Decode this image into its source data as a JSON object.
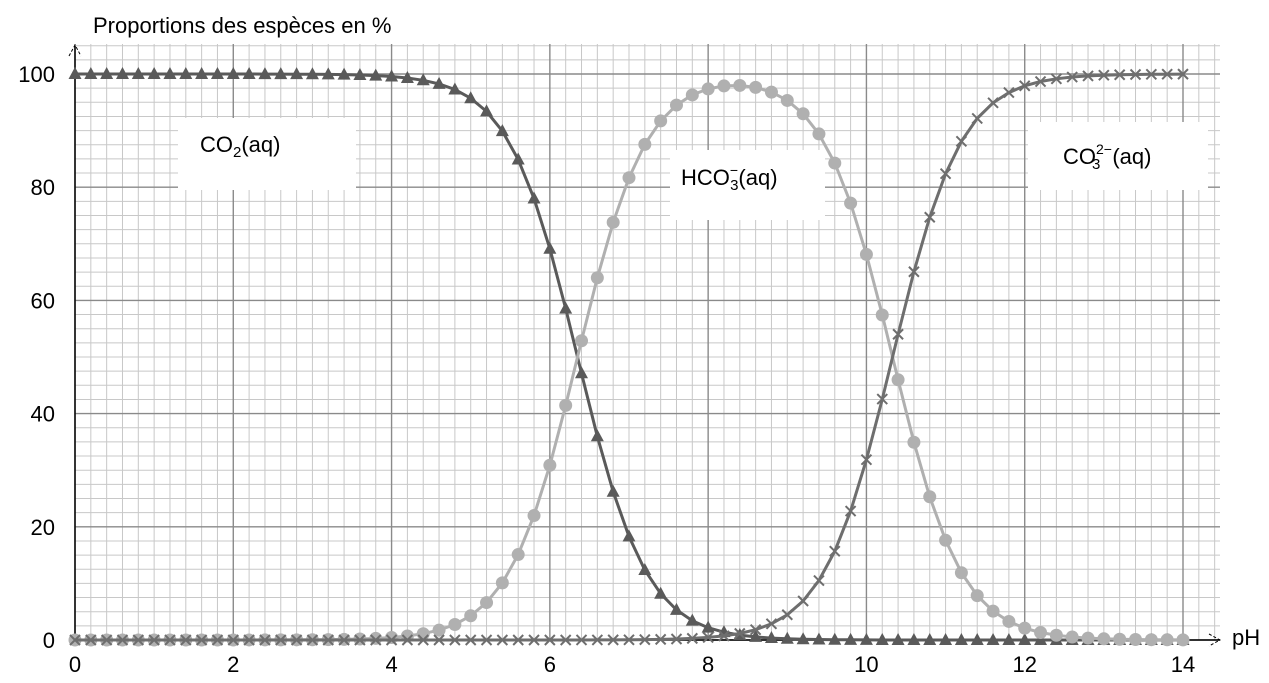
{
  "chart_data": {
    "type": "line",
    "ylabel": "Proportions des espèces en %",
    "xlabel": "pH",
    "xlim": [
      0,
      14
    ],
    "ylim": [
      0,
      100
    ],
    "x_ticks": [
      "0",
      "2",
      "4",
      "6",
      "8",
      "10",
      "12",
      "14"
    ],
    "y_ticks": [
      "0",
      "20",
      "40",
      "60",
      "80",
      "100"
    ],
    "grid": true,
    "pKa1": 6.35,
    "pKa2": 10.33,
    "step": 0.2,
    "series": [
      {
        "name": "CO2(aq)",
        "marker": "triangle",
        "color": "#5a5a5a"
      },
      {
        "name": "HCO3-(aq)",
        "marker": "circle",
        "color": "#b0b0b0"
      },
      {
        "name": "CO3 2-(aq)",
        "marker": "cross",
        "color": "#6e6e6e"
      }
    ],
    "species_labels": {
      "co2": {
        "main": "CO",
        "sub": "2",
        "tail": "(aq)"
      },
      "hco3": {
        "main": "HCO",
        "sup": "−",
        "sub": "3",
        "tail": "(aq)"
      },
      "co3": {
        "main": "CO",
        "sup": "2−",
        "sub": "3",
        "tail": "(aq)"
      }
    }
  }
}
